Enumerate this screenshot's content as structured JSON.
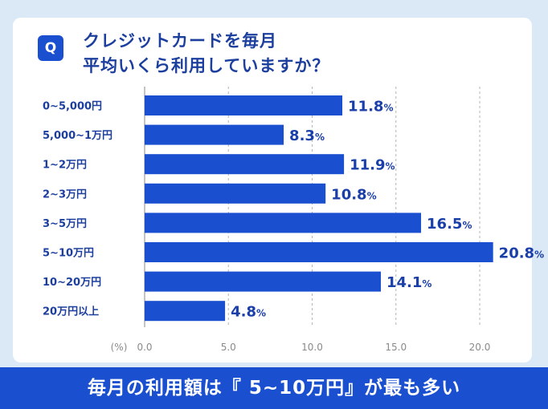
{
  "question": {
    "badge": "Q",
    "line1": "クレジットカードを毎月",
    "line2": "平均いくら利用していますか？"
  },
  "chart_data": {
    "type": "bar",
    "orientation": "horizontal",
    "categories": [
      "0~5,000円",
      "5,000~1万円",
      "1~2万円",
      "2~3万円",
      "3~5万円",
      "5~10万円",
      "10~20万円",
      "20万円以上"
    ],
    "values": [
      11.8,
      8.3,
      11.9,
      10.8,
      16.5,
      20.8,
      14.1,
      4.8
    ],
    "value_labels": [
      "11.8",
      "8.3",
      "11.9",
      "10.8",
      "16.5",
      "20.8",
      "14.1",
      "4.8"
    ],
    "unit": "%",
    "xlabel": "(%)",
    "xlim": [
      0,
      20
    ],
    "xticks": [
      "0.0",
      "5.0",
      "10.0",
      "15.0",
      "20.0"
    ],
    "grid": true,
    "bar_color": "#1a4fd0"
  },
  "banner": {
    "text": "毎月の利用額は『 5~10万円』が最も多い"
  }
}
